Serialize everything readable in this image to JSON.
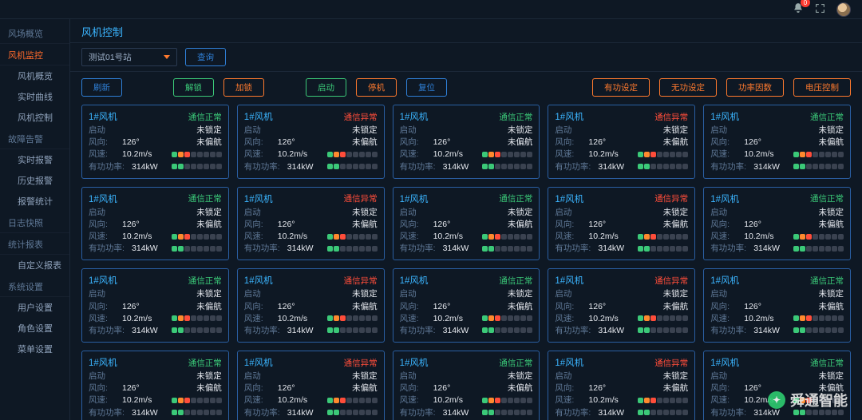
{
  "topbar": {
    "notification_count": "0"
  },
  "sidebar": {
    "groups": [
      {
        "label": "风场概览",
        "items": []
      },
      {
        "label": "风机监控",
        "active": true,
        "items": [
          {
            "label": "风机概览"
          },
          {
            "label": "实时曲线"
          },
          {
            "label": "风机控制"
          }
        ]
      },
      {
        "label": "故障告警",
        "items": [
          {
            "label": "实时报警"
          },
          {
            "label": "历史报警"
          },
          {
            "label": "报警统计"
          }
        ]
      },
      {
        "label": "日志快照",
        "items": []
      },
      {
        "label": "统计报表",
        "items": [
          {
            "label": "自定义报表"
          }
        ]
      },
      {
        "label": "系统设置",
        "items": [
          {
            "label": "用户设置"
          },
          {
            "label": "角色设置"
          },
          {
            "label": "菜单设置"
          }
        ]
      }
    ]
  },
  "page_title": "风机控制",
  "query": {
    "station": "测试01号站",
    "query_btn": "查询"
  },
  "actions": {
    "refresh": "刷新",
    "unlock": "解锁",
    "lock": "加锁",
    "start": "启动",
    "stop": "停机",
    "reset": "复位",
    "active_set": "有功设定",
    "reactive_set": "无功设定",
    "pf": "功率因数",
    "voltage": "电压控制"
  },
  "colors": {
    "status_ok": "#3bc978",
    "status_bad": "#ff4d3a",
    "bar_green": "#3bc978",
    "bar_orange": "#ff8a2e",
    "bar_red": "#ff4d3a",
    "bar_off": "#3a4250"
  },
  "card_labels": {
    "startup": "启动",
    "lock": "未锁定",
    "yaw": "未偏航",
    "wind_dir": "风向:",
    "wind_speed": "风速:",
    "active_power": "有功功率:"
  },
  "card_values": {
    "wind_dir": "126°",
    "wind_speed": "10.2m/s",
    "active_power": "314kW"
  },
  "status_text": {
    "ok": "通信正常",
    "bad": "通信异常"
  },
  "card_title": "1#风机",
  "card_status_pattern": [
    "ok",
    "bad",
    "ok",
    "bad",
    "ok",
    "ok",
    "bad",
    "ok",
    "bad",
    "ok",
    "ok",
    "bad",
    "ok",
    "bad",
    "ok",
    "ok",
    "bad",
    "ok",
    "bad",
    "ok"
  ],
  "bar_pattern_a": [
    "bar_green",
    "bar_orange",
    "bar_red",
    "bar_off",
    "bar_off",
    "bar_off",
    "bar_off",
    "bar_off"
  ],
  "bar_pattern_b": [
    "bar_green",
    "bar_green",
    "bar_off",
    "bar_off",
    "bar_off",
    "bar_off",
    "bar_off",
    "bar_off"
  ],
  "watermark": "舜通智能"
}
